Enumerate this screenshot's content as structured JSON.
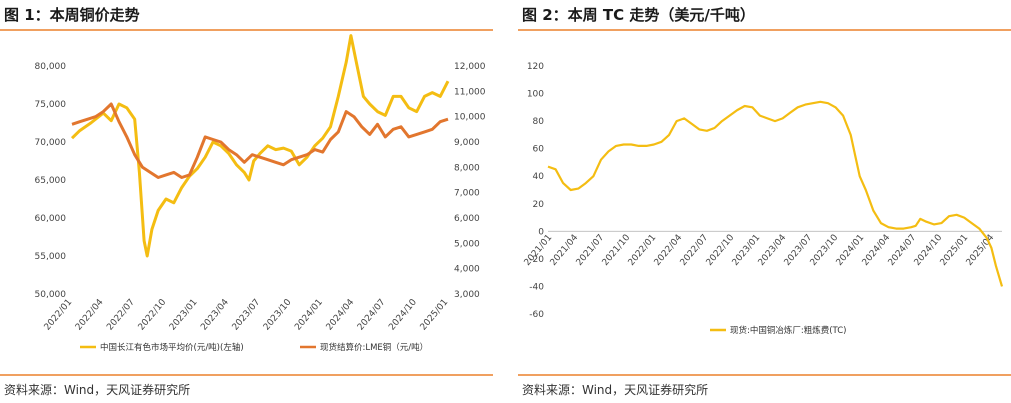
{
  "figures": [
    {
      "title": "图 1：本周铜价走势",
      "source": "资料来源：Wind，天风证券研究所"
    },
    {
      "title": "图 2：本周 TC 走势（美元/千吨）",
      "source": "资料来源：Wind，天风证券研究所"
    }
  ],
  "colors": {
    "gold": "#f4bd12",
    "orange": "#e2762e",
    "rule": "#f0a060"
  },
  "chart_data": [
    {
      "type": "line",
      "title": "本周铜价走势",
      "x_ticks": [
        "2022/01",
        "2022/04",
        "2022/07",
        "2022/10",
        "2023/01",
        "2023/04",
        "2023/07",
        "2023/10",
        "2024/01",
        "2024/04",
        "2024/07",
        "2024/10",
        "2025/01"
      ],
      "y_left": {
        "min": 50000,
        "max": 80000,
        "ticks": [
          "50,000",
          "55,000",
          "60,000",
          "65,000",
          "70,000",
          "75,000",
          "80,000"
        ]
      },
      "y_right": {
        "min": 3000,
        "max": 12000,
        "ticks": [
          "3,000",
          "4,000",
          "5,000",
          "6,000",
          "7,000",
          "8,000",
          "9,000",
          "10,000",
          "11,000",
          "12,000"
        ]
      },
      "series": [
        {
          "name": "中国长江有色市场平均价(元/吨)(左轴)",
          "axis": "left",
          "color": "#f4bd12",
          "points": [
            [
              0,
              70500
            ],
            [
              0.5,
              71500
            ],
            [
              1.2,
              72500
            ],
            [
              2,
              73800
            ],
            [
              2.5,
              72800
            ],
            [
              3,
              75000
            ],
            [
              3.5,
              74500
            ],
            [
              4,
              73000
            ],
            [
              4.3,
              66000
            ],
            [
              4.6,
              57000
            ],
            [
              4.8,
              55000
            ],
            [
              5.1,
              58500
            ],
            [
              5.5,
              61000
            ],
            [
              6,
              62500
            ],
            [
              6.5,
              62000
            ],
            [
              7,
              64000
            ],
            [
              7.5,
              65500
            ],
            [
              8,
              66500
            ],
            [
              8.5,
              68000
            ],
            [
              9,
              70000
            ],
            [
              9.5,
              69500
            ],
            [
              10,
              68500
            ],
            [
              10.5,
              67000
            ],
            [
              11,
              66000
            ],
            [
              11.3,
              65000
            ],
            [
              11.6,
              67500
            ],
            [
              12,
              68500
            ],
            [
              12.5,
              69500
            ],
            [
              13,
              69000
            ],
            [
              13.5,
              69200
            ],
            [
              14,
              68800
            ],
            [
              14.5,
              67000
            ],
            [
              15,
              68000
            ],
            [
              15.5,
              69500
            ],
            [
              16,
              70500
            ],
            [
              16.5,
              72000
            ],
            [
              17,
              76000
            ],
            [
              17.5,
              80500
            ],
            [
              17.8,
              84000
            ],
            [
              18.2,
              80000
            ],
            [
              18.6,
              76000
            ],
            [
              19,
              75000
            ],
            [
              19.5,
              74000
            ],
            [
              20,
              73500
            ],
            [
              20.5,
              76000
            ],
            [
              21,
              76000
            ],
            [
              21.5,
              74500
            ],
            [
              22,
              74000
            ],
            [
              22.5,
              76000
            ],
            [
              23,
              76500
            ],
            [
              23.5,
              76000
            ],
            [
              24,
              78000
            ]
          ]
        },
        {
          "name": "现货结算价:LME铜（元/吨）",
          "axis": "right",
          "color": "#e2762e",
          "points": [
            [
              0,
              9700
            ],
            [
              0.5,
              9800
            ],
            [
              1,
              9900
            ],
            [
              1.5,
              10000
            ],
            [
              2,
              10200
            ],
            [
              2.5,
              10500
            ],
            [
              3,
              9800
            ],
            [
              3.5,
              9200
            ],
            [
              4,
              8500
            ],
            [
              4.5,
              8000
            ],
            [
              5,
              7800
            ],
            [
              5.5,
              7600
            ],
            [
              6,
              7700
            ],
            [
              6.5,
              7800
            ],
            [
              7,
              7600
            ],
            [
              7.5,
              7700
            ],
            [
              8,
              8400
            ],
            [
              8.5,
              9200
            ],
            [
              9,
              9100
            ],
            [
              9.5,
              9000
            ],
            [
              10,
              8700
            ],
            [
              10.5,
              8500
            ],
            [
              11,
              8200
            ],
            [
              11.5,
              8500
            ],
            [
              12,
              8400
            ],
            [
              12.5,
              8300
            ],
            [
              13,
              8200
            ],
            [
              13.5,
              8100
            ],
            [
              14,
              8300
            ],
            [
              14.5,
              8400
            ],
            [
              15,
              8500
            ],
            [
              15.5,
              8700
            ],
            [
              16,
              8600
            ],
            [
              16.5,
              9100
            ],
            [
              17,
              9400
            ],
            [
              17.5,
              10200
            ],
            [
              18,
              10000
            ],
            [
              18.5,
              9600
            ],
            [
              19,
              9300
            ],
            [
              19.5,
              9700
            ],
            [
              20,
              9200
            ],
            [
              20.5,
              9500
            ],
            [
              21,
              9600
            ],
            [
              21.5,
              9200
            ],
            [
              22,
              9300
            ],
            [
              22.5,
              9400
            ],
            [
              23,
              9500
            ],
            [
              23.5,
              9800
            ],
            [
              24,
              9900
            ]
          ]
        }
      ]
    },
    {
      "type": "line",
      "title": "本周 TC 走势（美元/千吨）",
      "x_ticks": [
        "2021/01",
        "2021/04",
        "2021/07",
        "2021/10",
        "2022/01",
        "2022/04",
        "2022/07",
        "2022/10",
        "2023/01",
        "2023/04",
        "2023/07",
        "2023/10",
        "2024/01",
        "2024/04",
        "2024/07",
        "2024/10",
        "2025/01",
        "2025/04"
      ],
      "y": {
        "min": -60,
        "max": 120,
        "ticks": [
          "-60",
          "-40",
          "-20",
          "0",
          "20",
          "40",
          "60",
          "80",
          "100",
          "120"
        ]
      },
      "series": [
        {
          "name": "现货:中国铜冶炼厂:粗炼费(TC)",
          "color": "#f4bd12",
          "points": [
            [
              0,
              47
            ],
            [
              0.5,
              45
            ],
            [
              1,
              35
            ],
            [
              1.5,
              30
            ],
            [
              2,
              31
            ],
            [
              2.5,
              35
            ],
            [
              3,
              40
            ],
            [
              3.5,
              52
            ],
            [
              4,
              58
            ],
            [
              4.5,
              62
            ],
            [
              5,
              63
            ],
            [
              5.5,
              63
            ],
            [
              6,
              62
            ],
            [
              6.5,
              62
            ],
            [
              7,
              63
            ],
            [
              7.5,
              65
            ],
            [
              8,
              70
            ],
            [
              8.5,
              80
            ],
            [
              9,
              82
            ],
            [
              9.5,
              78
            ],
            [
              10,
              74
            ],
            [
              10.5,
              73
            ],
            [
              11,
              75
            ],
            [
              11.5,
              80
            ],
            [
              12,
              84
            ],
            [
              12.5,
              88
            ],
            [
              13,
              91
            ],
            [
              13.5,
              90
            ],
            [
              14,
              84
            ],
            [
              14.5,
              82
            ],
            [
              15,
              80
            ],
            [
              15.5,
              82
            ],
            [
              16,
              86
            ],
            [
              16.5,
              90
            ],
            [
              17,
              92
            ],
            [
              17.5,
              93
            ],
            [
              18,
              94
            ],
            [
              18.5,
              93
            ],
            [
              19,
              90
            ],
            [
              19.5,
              84
            ],
            [
              20,
              70
            ],
            [
              20.3,
              55
            ],
            [
              20.6,
              40
            ],
            [
              21,
              30
            ],
            [
              21.5,
              15
            ],
            [
              22,
              6
            ],
            [
              22.5,
              3
            ],
            [
              23,
              2
            ],
            [
              23.5,
              2
            ],
            [
              24,
              3
            ],
            [
              24.3,
              4
            ],
            [
              24.6,
              9
            ],
            [
              25,
              7
            ],
            [
              25.5,
              5
            ],
            [
              26,
              6
            ],
            [
              26.5,
              11
            ],
            [
              27,
              12
            ],
            [
              27.5,
              10
            ],
            [
              28,
              6
            ],
            [
              28.5,
              2
            ],
            [
              29,
              -5
            ],
            [
              29.3,
              -12
            ],
            [
              29.6,
              -25
            ],
            [
              30,
              -40
            ]
          ]
        }
      ]
    }
  ]
}
